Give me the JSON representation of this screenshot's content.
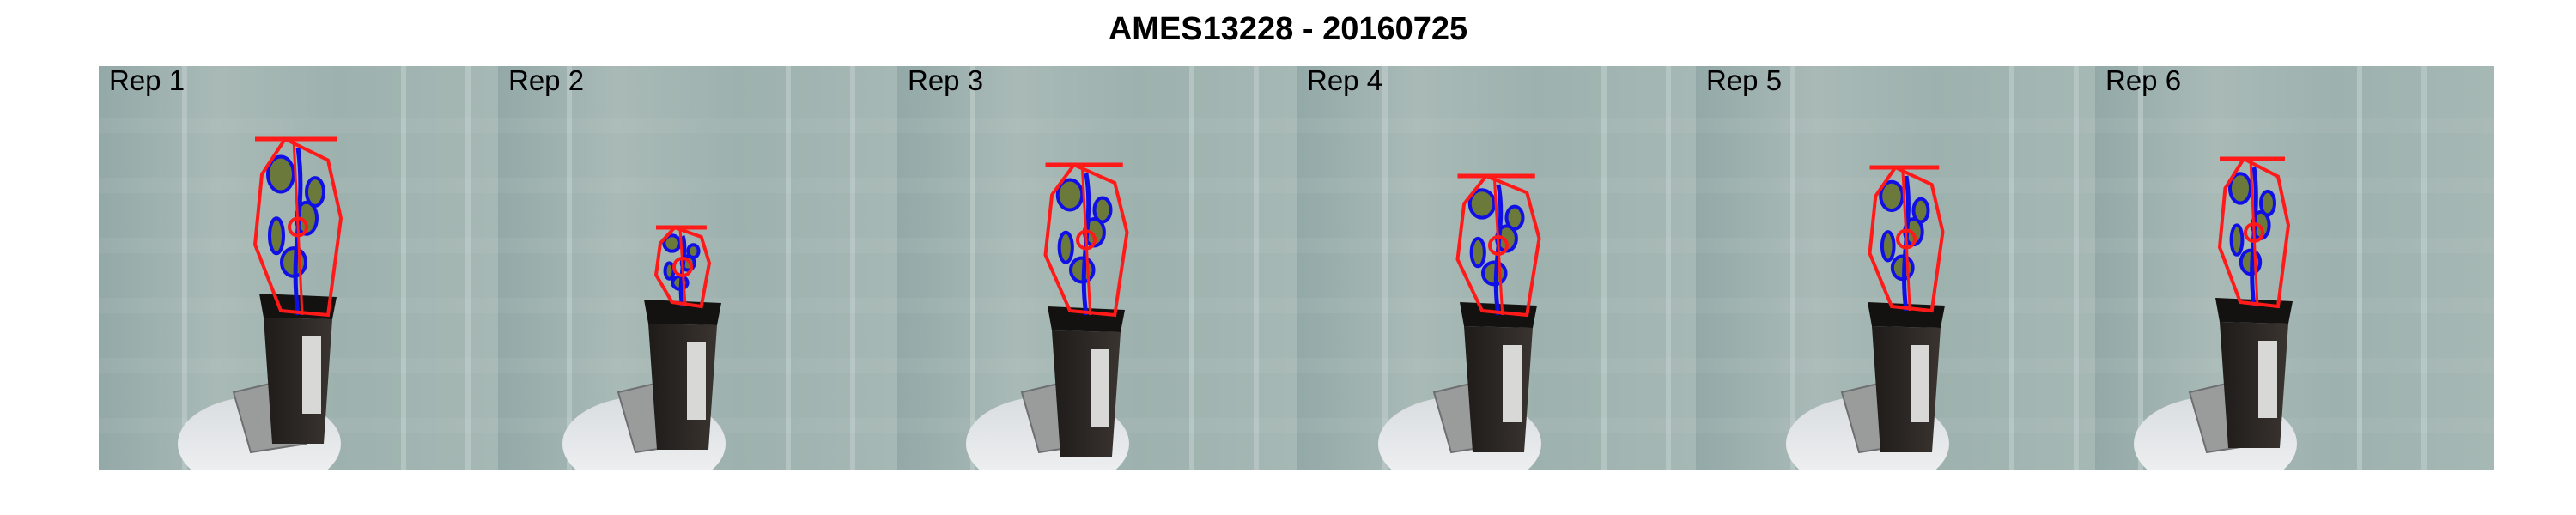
{
  "figure": {
    "title": "AMES13228 - 20160725"
  },
  "panels": [
    {
      "label": "Rep 1"
    },
    {
      "label": "Rep 2"
    },
    {
      "label": "Rep 3"
    },
    {
      "label": "Rep 4"
    },
    {
      "label": "Rep 5"
    },
    {
      "label": "Rep 6"
    }
  ],
  "colors": {
    "hull_outline": "#ff1a1a",
    "leaf_contour": "#1010e6",
    "leaf_fill": "#6b7a3a",
    "pot": "#2a2522",
    "background_wall": "#9fb3b0"
  }
}
